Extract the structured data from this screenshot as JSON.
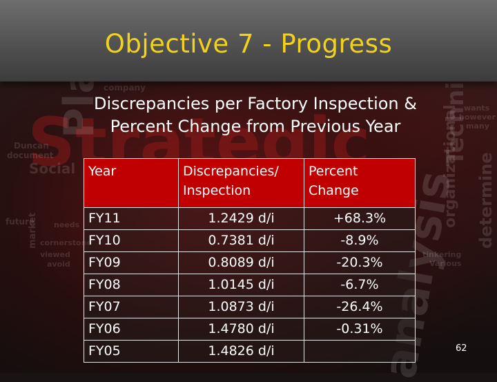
{
  "slide": {
    "title": "Objective 7 - Progress",
    "subtitle_line1": "Discrepancies per Factory Inspection &",
    "subtitle_line2": "Percent Change from Previous Year",
    "page_number": "62"
  },
  "table": {
    "headers": {
      "year": "Year",
      "disc_line1": "Discrepancies/",
      "disc_line2": "Inspection",
      "pct_line1": "Percent",
      "pct_line2": "Change"
    },
    "rows": [
      {
        "year": "FY11",
        "disc": "1.2429 d/i",
        "pct": "+68.3%"
      },
      {
        "year": "FY10",
        "disc": "0.7381 d/i",
        "pct": "-8.9%"
      },
      {
        "year": "FY09",
        "disc": "0.8089 d/i",
        "pct": "-20.3%"
      },
      {
        "year": "FY08",
        "disc": "1.0145 d/i",
        "pct": "-6.7%"
      },
      {
        "year": "FY07",
        "disc": "1.0873 d/i",
        "pct": "-26.4%"
      },
      {
        "year": "FY06",
        "disc": "1.4780 d/i",
        "pct": "-0.31%"
      },
      {
        "year": "FY05",
        "disc": "1.4826 d/i",
        "pct": ""
      }
    ]
  },
  "background_words": {
    "w1": "Strategic",
    "w2": "Planning",
    "w3": "analysis",
    "w4": "Techniques",
    "w5": "organizational",
    "w6": "determine",
    "w7": "Social",
    "w8": "market",
    "w9": "company",
    "w10": "document",
    "w11": "Duncan",
    "w12": "future",
    "w13": "tinkering",
    "w14": "Various",
    "w15": "cornerstone",
    "w16": "needs",
    "w17": "viewed",
    "w18": "avoid",
    "w19": "wants",
    "w20": "however",
    "w21": "many"
  },
  "colors": {
    "title": "#f2d21a",
    "header_fill": "#c00000",
    "text": "#ffffff",
    "header_bar": "#5a5a5a"
  }
}
